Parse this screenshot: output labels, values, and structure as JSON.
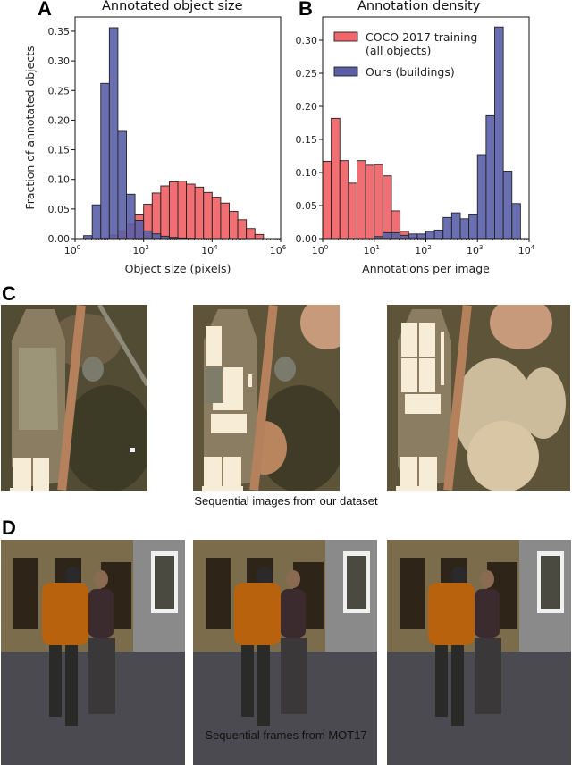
{
  "panels": {
    "a": {
      "letter": "A"
    },
    "b": {
      "letter": "B"
    },
    "c": {
      "letter": "C",
      "caption": "Sequential images from our dataset"
    },
    "d": {
      "letter": "D",
      "caption": "Sequential frames from MOT17"
    }
  },
  "colors": {
    "coco": "#f0666b",
    "ours": "#5a5fa8",
    "overlap": "#6a3f9a",
    "edge": "#222222"
  },
  "chart_data": [
    {
      "type": "bar",
      "title": "Annotated object size",
      "xlabel": "Object size (pixels)",
      "ylabel": "Fraction of annotated objects",
      "xscale": "log10",
      "xlim_exp": [
        0,
        6
      ],
      "ylim": [
        0,
        0.37
      ],
      "xticks": [
        {
          "exp": 0,
          "label": "10",
          "sup": "0"
        },
        {
          "exp": 2,
          "label": "10",
          "sup": "2"
        },
        {
          "exp": 4,
          "label": "10",
          "sup": "4"
        },
        {
          "exp": 6,
          "label": "10",
          "sup": "6"
        }
      ],
      "yticks": [
        "0.00",
        "0.05",
        "0.10",
        "0.15",
        "0.20",
        "0.25",
        "0.30",
        "0.35"
      ],
      "bin_width_exp": 0.25,
      "series": [
        {
          "name": "Ours (buildings)",
          "bins_start_exp": [
            0.25,
            0.5,
            0.75,
            1.0,
            1.25,
            1.5,
            1.75,
            2.0,
            2.25,
            2.5,
            2.75,
            3.0,
            3.25
          ],
          "values": [
            0.005,
            0.057,
            0.262,
            0.356,
            0.181,
            0.075,
            0.031,
            0.013,
            0.008,
            0.004,
            0.002,
            0.001,
            0.0005
          ]
        },
        {
          "name": "COCO 2017 training (all objects)",
          "bins_start_exp": [
            0.75,
            1.0,
            1.25,
            1.5,
            1.75,
            2.0,
            2.25,
            2.5,
            2.75,
            3.0,
            3.25,
            3.5,
            3.75,
            4.0,
            4.25,
            4.5,
            4.75,
            5.0,
            5.25
          ],
          "values": [
            0.001,
            0.006,
            0.013,
            0.024,
            0.04,
            0.058,
            0.077,
            0.089,
            0.096,
            0.097,
            0.092,
            0.087,
            0.078,
            0.07,
            0.06,
            0.046,
            0.032,
            0.017,
            0.007
          ]
        }
      ]
    },
    {
      "type": "bar",
      "title": "Annotation density",
      "xlabel": "Annotations per image",
      "ylabel": "",
      "xscale": "log10",
      "xlim_exp": [
        0,
        4
      ],
      "ylim": [
        0,
        0.33
      ],
      "xticks": [
        {
          "exp": 0,
          "label": "10",
          "sup": "0"
        },
        {
          "exp": 1,
          "label": "10",
          "sup": "1"
        },
        {
          "exp": 2,
          "label": "10",
          "sup": "2"
        },
        {
          "exp": 3,
          "label": "10",
          "sup": "3"
        },
        {
          "exp": 4,
          "label": "10",
          "sup": "4"
        }
      ],
      "yticks": [
        "0.00",
        "0.05",
        "0.10",
        "0.15",
        "0.20",
        "0.25",
        "0.30"
      ],
      "legend": [
        {
          "label_line1": "COCO 2017 training",
          "label_line2": "(all objects)",
          "series": "COCO 2017 training (all objects)"
        },
        {
          "label_line1": "Ours (buildings)",
          "label_line2": "",
          "series": "Ours (buildings)"
        }
      ],
      "bin_width_exp": 0.1667,
      "series": [
        {
          "name": "COCO 2017 training (all objects)",
          "bins_start_exp": [
            0.0,
            0.1667,
            0.3333,
            0.5,
            0.6667,
            0.8333,
            1.0,
            1.1667,
            1.3333,
            1.5,
            1.6667,
            1.8333
          ],
          "values": [
            0.117,
            0.182,
            0.118,
            0.084,
            0.118,
            0.111,
            0.112,
            0.095,
            0.042,
            0.011,
            0.002,
            0.001
          ]
        },
        {
          "name": "Ours (buildings)",
          "bins_start_exp": [
            1.0,
            1.1667,
            1.3333,
            1.5,
            1.6667,
            1.8333,
            2.0,
            2.1667,
            2.3333,
            2.5,
            2.6667,
            2.8333,
            3.0,
            3.1667,
            3.3333,
            3.5,
            3.6667
          ],
          "values": [
            0.003,
            0.009,
            0.009,
            0.005,
            0.007,
            0.007,
            0.011,
            0.013,
            0.032,
            0.039,
            0.03,
            0.036,
            0.127,
            0.186,
            0.32,
            0.102,
            0.053
          ]
        }
      ]
    }
  ]
}
